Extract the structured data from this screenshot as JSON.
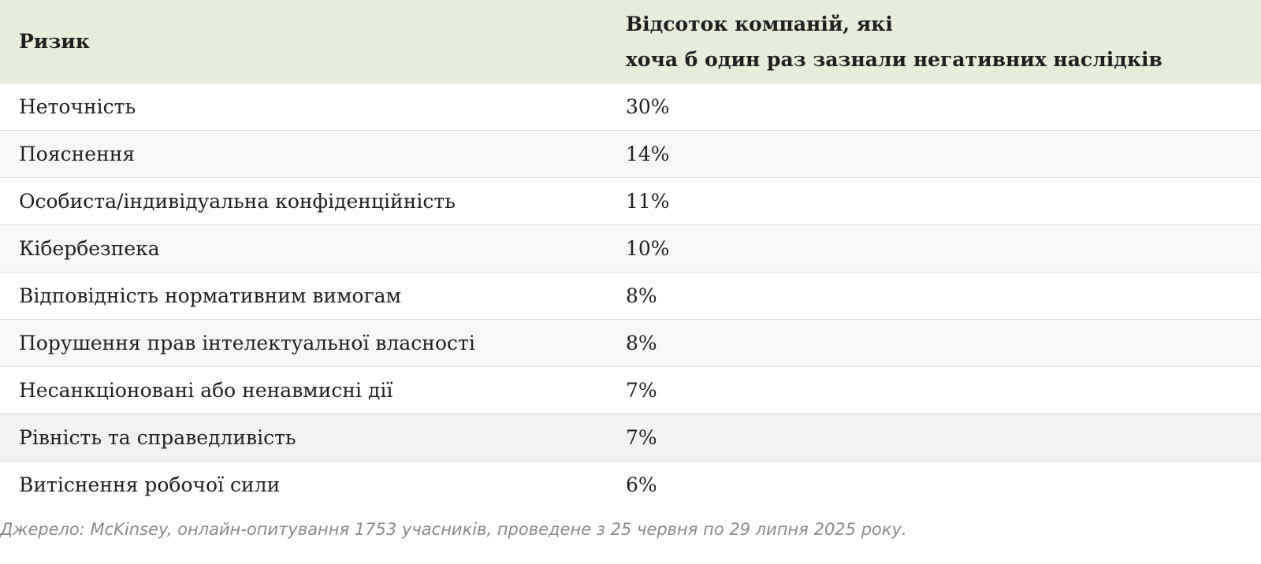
{
  "table": {
    "headers": {
      "risk": "Ризик",
      "percent_line1": "Відсоток компаній, які",
      "percent_line2": "хоча б один раз зазнали негативних наслідків"
    },
    "rows": [
      {
        "risk": "Неточність",
        "percent": "30%"
      },
      {
        "risk": "Пояснення",
        "percent": "14%"
      },
      {
        "risk": "Особиста/індивідуальна конфіденційність",
        "percent": "11%"
      },
      {
        "risk": "Кібербезпека",
        "percent": "10%"
      },
      {
        "risk": "Відповідність нормативним вимогам",
        "percent": "8%"
      },
      {
        "risk": "Порушення прав інтелектуальної власності",
        "percent": "8%"
      },
      {
        "risk": "Несанкціоновані або ненавмисні дії",
        "percent": "7%"
      },
      {
        "risk": "Рівність та справедливість",
        "percent": "7%"
      },
      {
        "risk": "Витіснення робочої сили",
        "percent": "6%"
      }
    ]
  },
  "source": "Джерело: McKinsey, онлайн-опитування 1753 учасників, проведене з 25 червня по 29 липня 2025 року.",
  "colors": {
    "header_bg": "#e6eedb",
    "row_alt_bg": "#f7f7f7",
    "text": "#1f1f1f",
    "source_text": "#8a8a8a"
  }
}
